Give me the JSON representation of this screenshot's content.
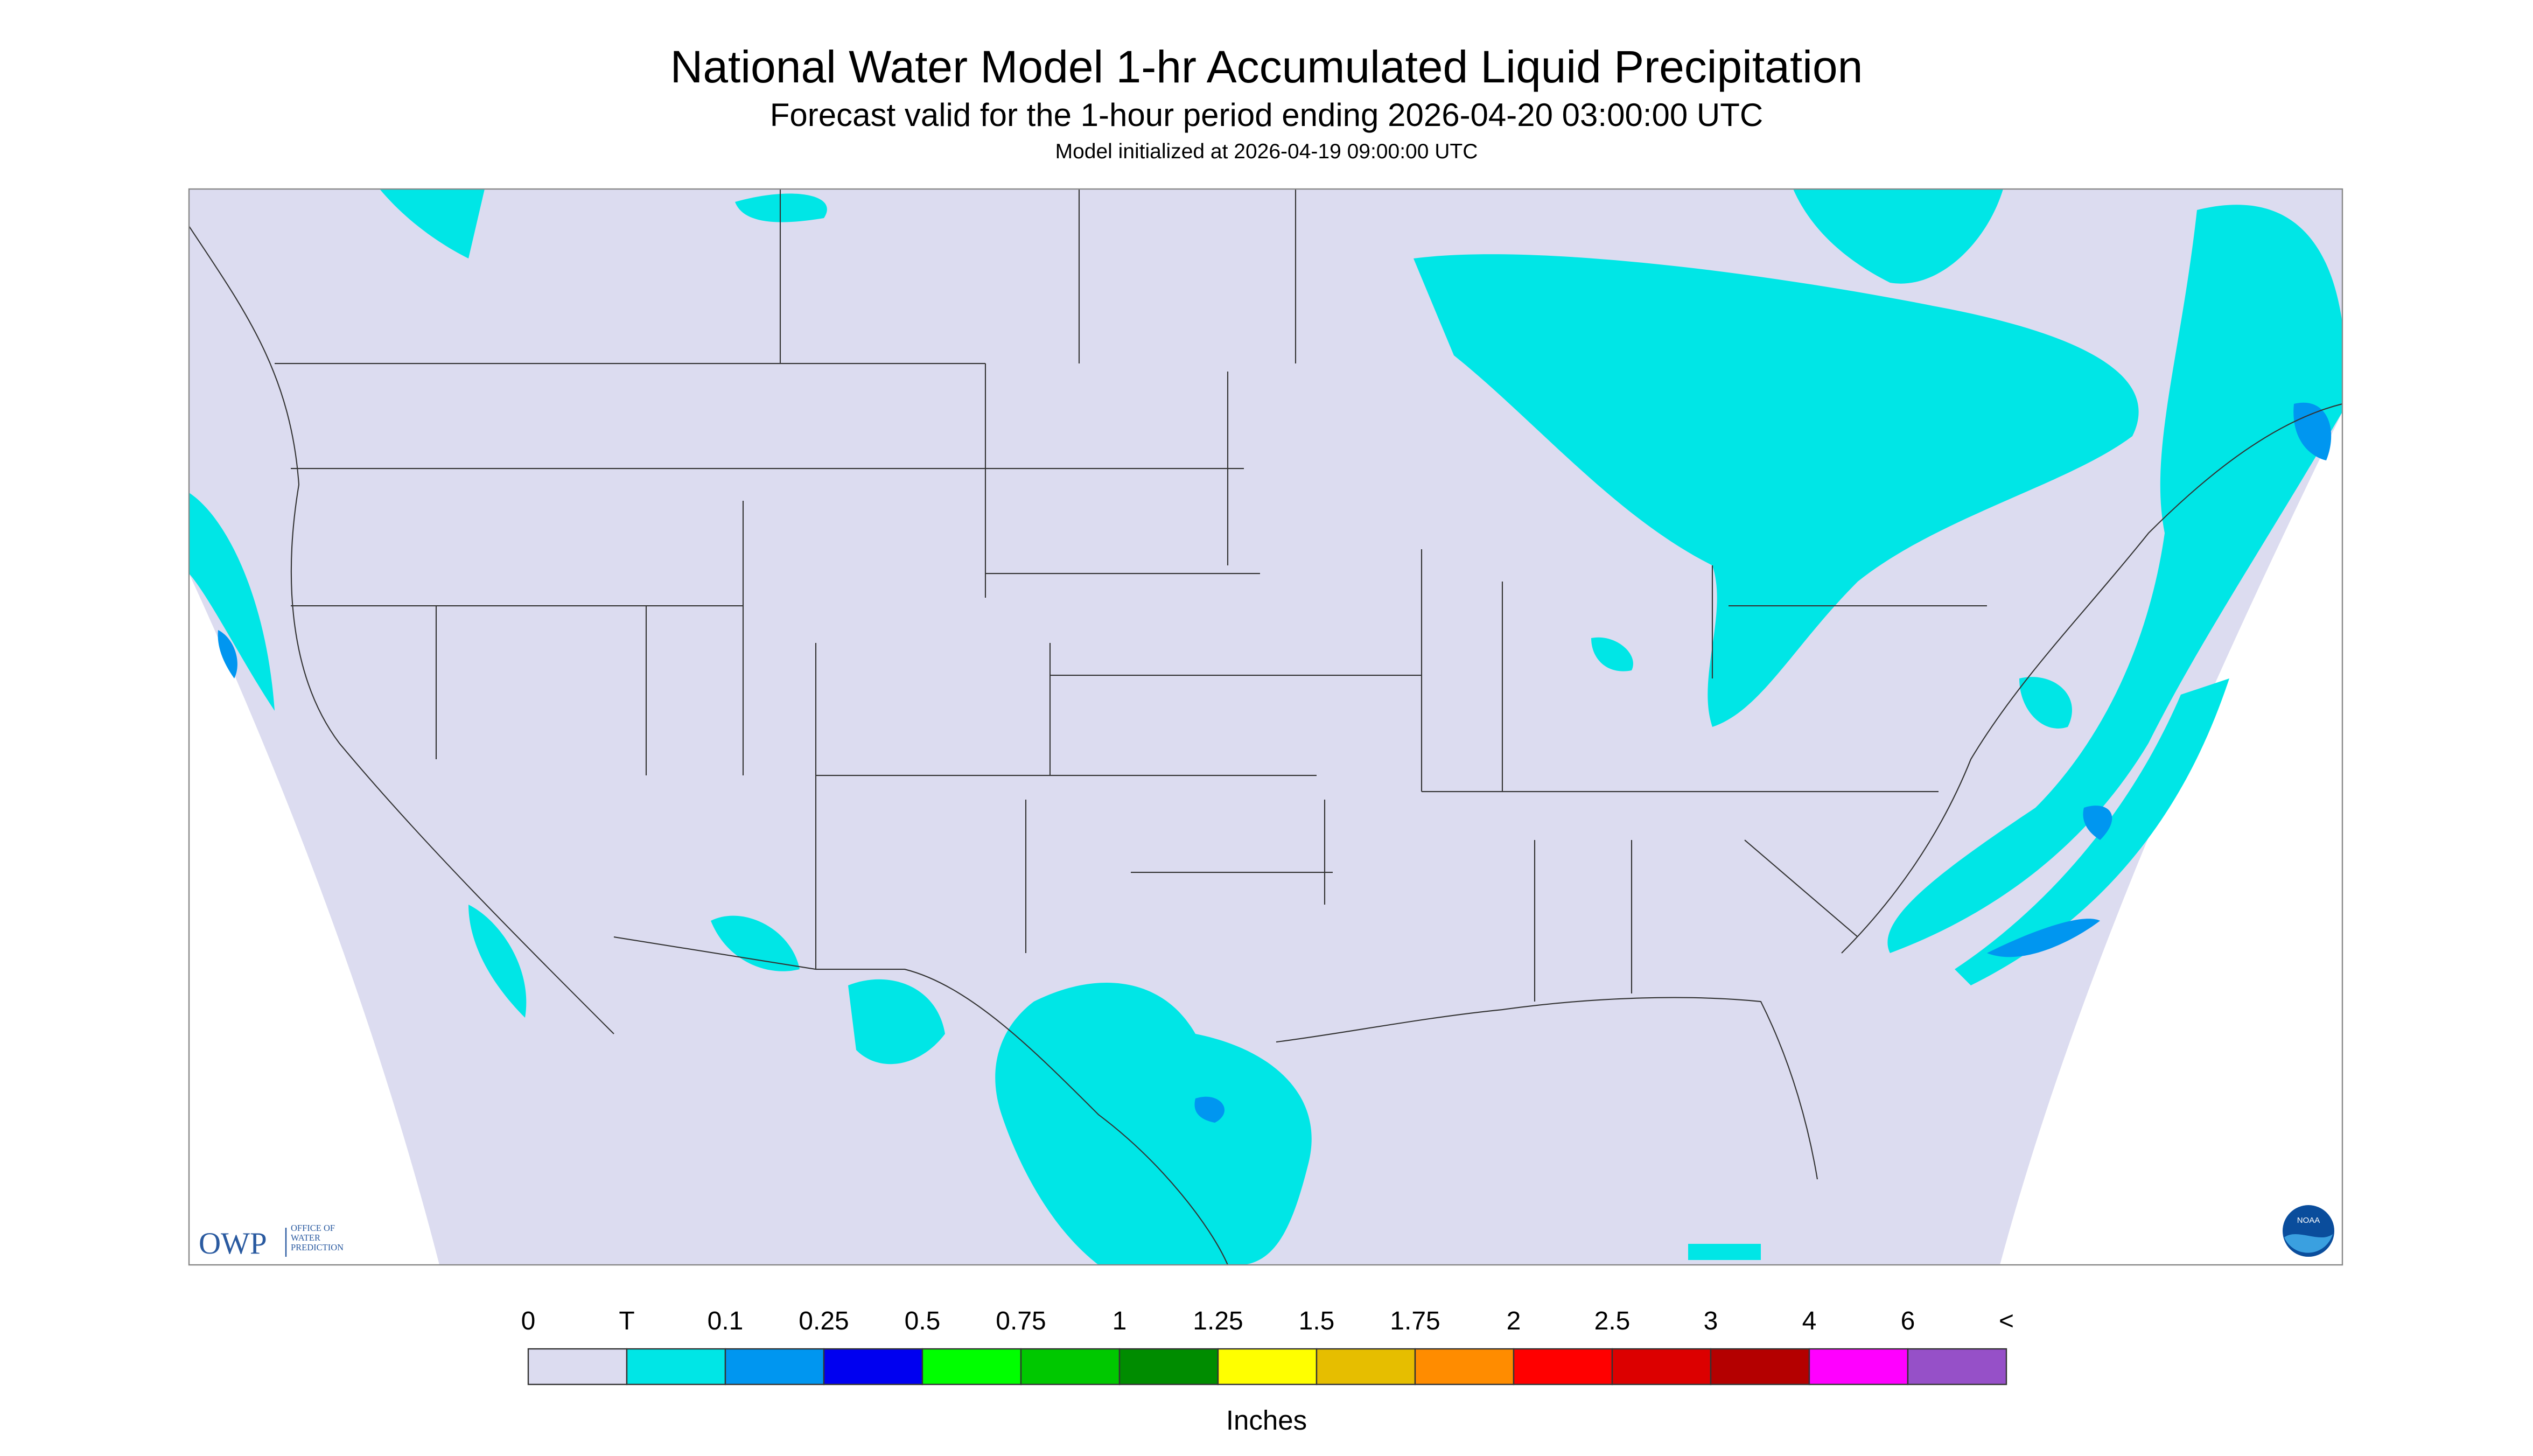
{
  "header": {
    "title": "National Water Model 1-hr Accumulated Liquid Precipitation",
    "subtitle": "Forecast valid for the 1-hour period ending 2026-04-20 03:00:00 UTC",
    "init": "Model initialized at 2026-04-19 09:00:00 UTC"
  },
  "legend": {
    "labels": [
      "0",
      "T",
      "0.1",
      "0.25",
      "0.5",
      "0.75",
      "1",
      "1.25",
      "1.5",
      "1.75",
      "2",
      "2.5",
      "3",
      "4",
      "6",
      "<"
    ],
    "colors": [
      "#dcdcf0",
      "#00e6e6",
      "#0096f0",
      "#0000f0",
      "#00ff00",
      "#00c800",
      "#008c00",
      "#ffff00",
      "#e6be00",
      "#ff8c00",
      "#ff0000",
      "#dc0000",
      "#b40000",
      "#ff00ff",
      "#9650c8"
    ],
    "unit": "Inches"
  },
  "logo": {
    "owp": "OWP",
    "owp_full": "OFFICE OF WATER PREDICTION",
    "noaa": "NOAA"
  }
}
